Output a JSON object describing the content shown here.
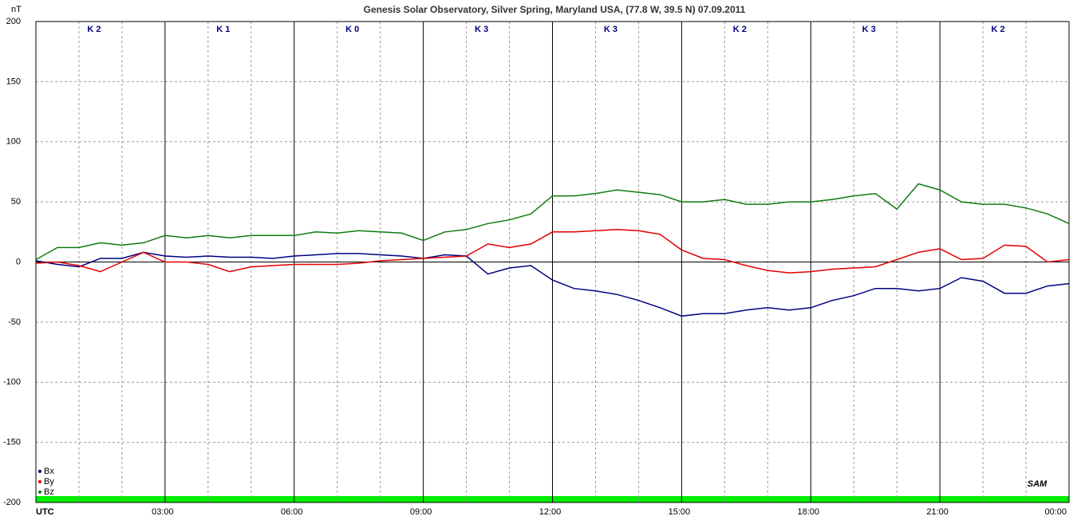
{
  "chart_data": {
    "type": "line",
    "title": "Genesis Solar Observatory, Silver Spring, Maryland USA, (77.8 W, 39.5 N)  07.09.2011",
    "y_label": "nT",
    "x": [
      0,
      0.5,
      1,
      1.5,
      2,
      2.5,
      3,
      3.5,
      4,
      4.5,
      5,
      5.5,
      6,
      6.5,
      7,
      7.5,
      8,
      8.5,
      9,
      9.5,
      10,
      10.5,
      11,
      11.5,
      12,
      12.5,
      13,
      13.5,
      14,
      14.5,
      15,
      15.5,
      16,
      16.5,
      17,
      17.5,
      18,
      18.5,
      19,
      19.5,
      20,
      20.5,
      21,
      21.5,
      22,
      22.5,
      23,
      23.5,
      24
    ],
    "series": [
      {
        "name": "Bx",
        "color": "#000080",
        "values": [
          1,
          -2,
          -4,
          3,
          3,
          8,
          5,
          4,
          5,
          4,
          4,
          3,
          5,
          6,
          7,
          7,
          6,
          5,
          3,
          6,
          5,
          -10,
          -5,
          -3,
          -15,
          -22,
          -24,
          -27,
          -32,
          -38,
          -45,
          -43,
          -43,
          -40,
          -38,
          -40,
          -38,
          -32,
          -28,
          -22,
          -22,
          -24,
          -22,
          -13,
          -16,
          -26,
          -26,
          -20,
          -18
        ]
      },
      {
        "name": "By",
        "color": "#e00000",
        "values": [
          -1,
          0,
          -3,
          -8,
          0,
          8,
          0,
          0,
          -2,
          -8,
          -4,
          -3,
          -2,
          -2,
          -2,
          -1,
          1,
          2,
          3,
          4,
          5,
          15,
          12,
          15,
          25,
          25,
          26,
          27,
          26,
          23,
          10,
          3,
          2,
          -3,
          -7,
          -9,
          -8,
          -6,
          -5,
          -4,
          2,
          8,
          11,
          2,
          3,
          14,
          13,
          0,
          2
        ]
      },
      {
        "name": "Bz",
        "color": "#107a10",
        "values": [
          2,
          12,
          12,
          16,
          14,
          16,
          22,
          20,
          22,
          20,
          22,
          22,
          22,
          25,
          24,
          26,
          25,
          24,
          18,
          25,
          27,
          32,
          35,
          40,
          55,
          55,
          57,
          60,
          58,
          56,
          50,
          50,
          52,
          48,
          48,
          50,
          50,
          52,
          55,
          57,
          44,
          65,
          60,
          50,
          48,
          48,
          45,
          40,
          32
        ]
      }
    ],
    "xlim": [
      0,
      24
    ],
    "xticks": [
      {
        "value": 0,
        "label": "UTC"
      },
      {
        "value": 3,
        "label": "03:00"
      },
      {
        "value": 6,
        "label": "06:00"
      },
      {
        "value": 9,
        "label": "09:00"
      },
      {
        "value": 12,
        "label": "12:00"
      },
      {
        "value": 15,
        "label": "15:00"
      },
      {
        "value": 18,
        "label": "18:00"
      },
      {
        "value": 21,
        "label": "21:00"
      },
      {
        "value": 24,
        "label": "00:00"
      }
    ],
    "x_minor_ticks": [
      1,
      2,
      4,
      5,
      7,
      8,
      10,
      11,
      13,
      14,
      16,
      17,
      19,
      20,
      22,
      23
    ],
    "ylim": [
      -200,
      200
    ],
    "yticks": [
      -200,
      -150,
      -100,
      -50,
      0,
      50,
      100,
      150,
      200
    ],
    "k_indices": [
      "K 2",
      "K 1",
      "K 0",
      "K 3",
      "K 3",
      "K 2",
      "K 3",
      "K 2"
    ],
    "logo": "SAM"
  }
}
